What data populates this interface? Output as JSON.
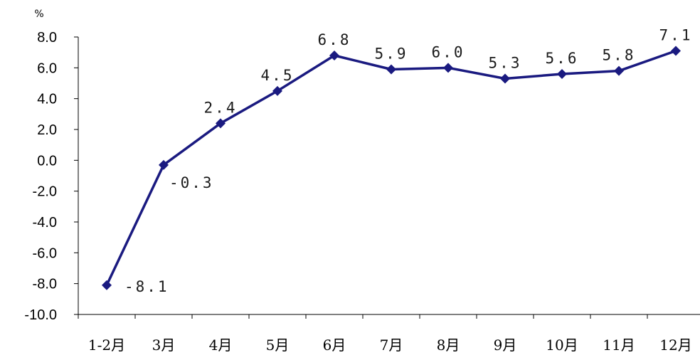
{
  "chart_data": {
    "type": "line",
    "ylabel": "%",
    "ylim": [
      -10,
      8
    ],
    "yticks": [
      "8.0",
      "6.0",
      "4.0",
      "2.0",
      "0.0",
      "-2.0",
      "-4.0",
      "-6.0",
      "-8.0",
      "-10.0"
    ],
    "categories": [
      "1-2月",
      "3月",
      "4月",
      "5月",
      "6月",
      "7月",
      "8月",
      "9月",
      "10月",
      "11月",
      "12月"
    ],
    "series": [
      {
        "values": [
          -8.1,
          -0.3,
          2.4,
          4.5,
          6.8,
          5.9,
          6.0,
          5.3,
          5.6,
          5.8,
          7.1
        ],
        "labels": [
          "-8.1",
          "-0.3",
          "2.4",
          "4.5",
          "6.8",
          "5.9",
          "6.0",
          "5.3",
          "5.6",
          "5.8",
          "7.1"
        ],
        "color": "#1a1a80",
        "marker": "diamond"
      }
    ],
    "grid": false,
    "legend": "none"
  }
}
